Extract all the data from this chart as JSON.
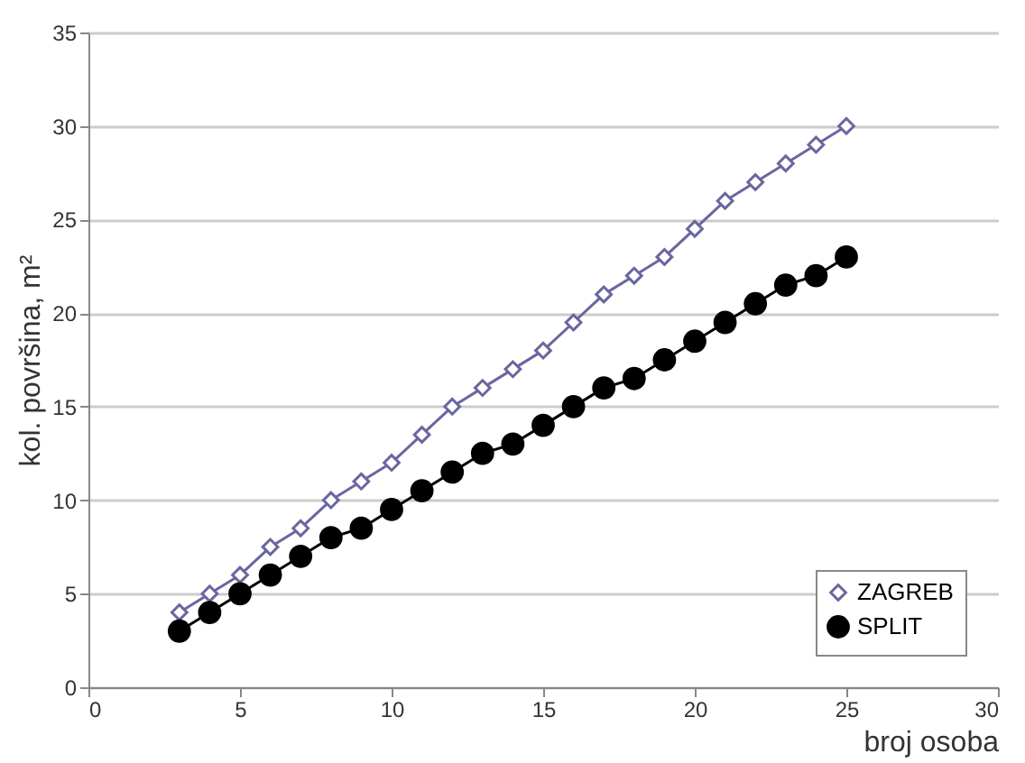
{
  "chart_data": {
    "type": "line",
    "xlabel": "broj osoba",
    "ylabel": "kol. površina, m²",
    "x": [
      3,
      4,
      5,
      6,
      7,
      8,
      9,
      10,
      11,
      12,
      13,
      14,
      15,
      16,
      17,
      18,
      19,
      20,
      21,
      22,
      23,
      24,
      25
    ],
    "series": [
      {
        "name": "ZAGREB",
        "color": "#6a66a0",
        "marker": "diamond",
        "values": [
          4,
          5,
          6,
          7.5,
          8.5,
          10,
          11,
          12,
          13.5,
          15,
          16,
          17,
          18,
          19.5,
          21,
          22,
          23,
          24.5,
          26,
          27,
          28,
          29,
          30
        ]
      },
      {
        "name": "SPLIT",
        "color": "#000000",
        "marker": "circle",
        "values": [
          3,
          4,
          5,
          6,
          7,
          8,
          8.5,
          9.5,
          10.5,
          11.5,
          12.5,
          13,
          14,
          15,
          16,
          16.5,
          17.5,
          18.5,
          19.5,
          20.5,
          21.5,
          22,
          23
        ]
      }
    ],
    "xlim": [
      0,
      30
    ],
    "xticks": [
      0,
      5,
      10,
      15,
      20,
      25,
      30
    ],
    "ylim": [
      0,
      35
    ],
    "yticks": [
      0,
      5,
      10,
      15,
      20,
      25,
      30,
      35
    ],
    "grid": "y",
    "legend": "bottom right",
    "line_style": "solid"
  }
}
